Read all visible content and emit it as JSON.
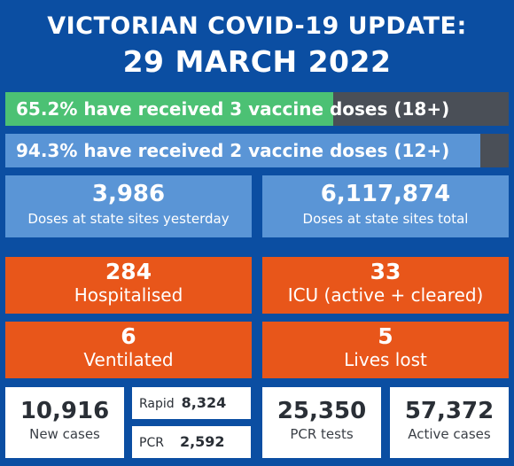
{
  "header": {
    "line1": "VICTORIAN COVID-19 UPDATE:",
    "line2": "29 MARCH 2022"
  },
  "vaccine": {
    "three_dose_text": "65.2% have received 3 vaccine doses (18+)",
    "three_dose_pct": 65.2,
    "two_dose_text": "94.3% have received 2 vaccine doses (12+)",
    "two_dose_pct": 94.3
  },
  "doses": {
    "yesterday_value": "3,986",
    "yesterday_label": "Doses at state sites yesterday",
    "total_value": "6,117,874",
    "total_label": "Doses at state sites total"
  },
  "hospital": {
    "hospitalised_value": "284",
    "hospitalised_label": "Hospitalised",
    "icu_value": "33",
    "icu_label": "ICU (active + cleared)",
    "ventilated_value": "6",
    "ventilated_label": "Ventilated",
    "lives_lost_value": "5",
    "lives_lost_label": "Lives lost"
  },
  "cases": {
    "new_value": "10,916",
    "new_label": "New cases",
    "rapid_label": "Rapid",
    "rapid_value": "8,324",
    "pcr_label": "PCR",
    "pcr_value": "2,592",
    "pcr_tests_value": "25,350",
    "pcr_tests_label": "PCR tests",
    "active_value": "57,372",
    "active_label": "Active cases"
  },
  "colors": {
    "background": "#0b4ea2",
    "green": "#4cc174",
    "light_blue": "#5a95d6",
    "grey": "#4a4f57",
    "orange": "#e8561a"
  }
}
